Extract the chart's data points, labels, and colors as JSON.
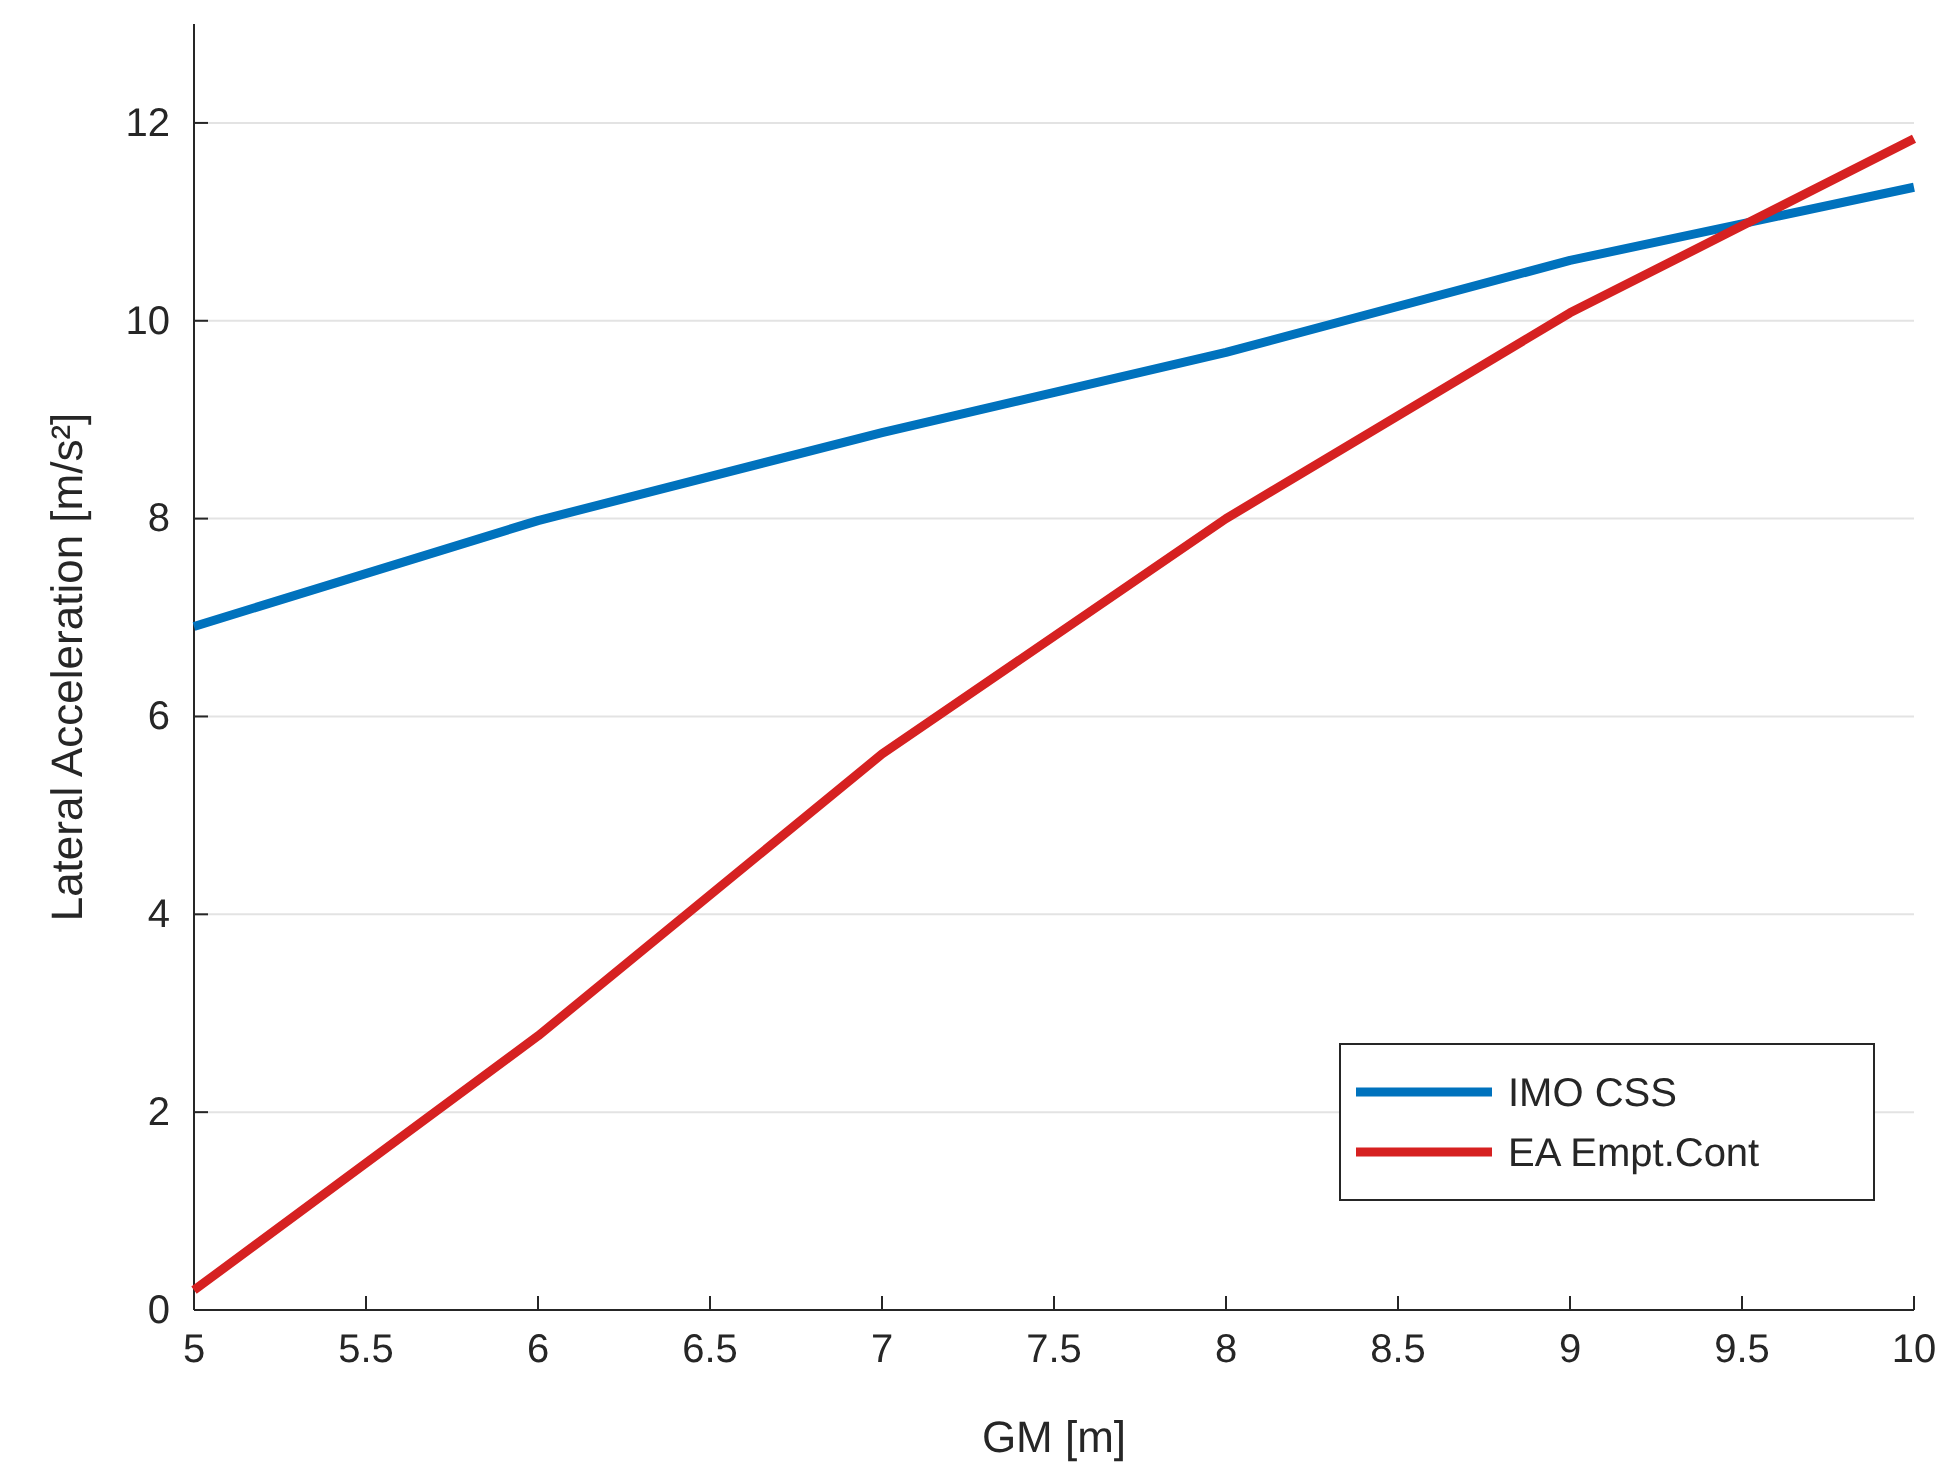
{
  "chart_data": {
    "type": "line",
    "xlabel": "GM [m]",
    "ylabel": "Lateral Acceleration [m/s²]",
    "x": [
      5,
      6,
      7,
      8,
      9,
      10
    ],
    "series": [
      {
        "name": "IMO CSS",
        "color": "#0072bd",
        "values": [
          6.91,
          7.98,
          8.87,
          9.68,
          10.61,
          11.35
        ]
      },
      {
        "name": "EA Empt.Cont",
        "color": "#d62121",
        "values": [
          0.2,
          2.77,
          5.62,
          8.0,
          10.08,
          11.84
        ]
      }
    ],
    "xlim": [
      5,
      10
    ],
    "xticks": [
      5,
      5.5,
      6,
      6.5,
      7,
      7.5,
      8,
      8.5,
      9,
      9.5,
      10
    ],
    "ylim": [
      0,
      13
    ],
    "yticks": [
      0,
      2,
      4,
      6,
      8,
      10,
      12
    ],
    "grid": "y",
    "legend": "bottom right",
    "marker": "none",
    "line_style": "solid"
  }
}
